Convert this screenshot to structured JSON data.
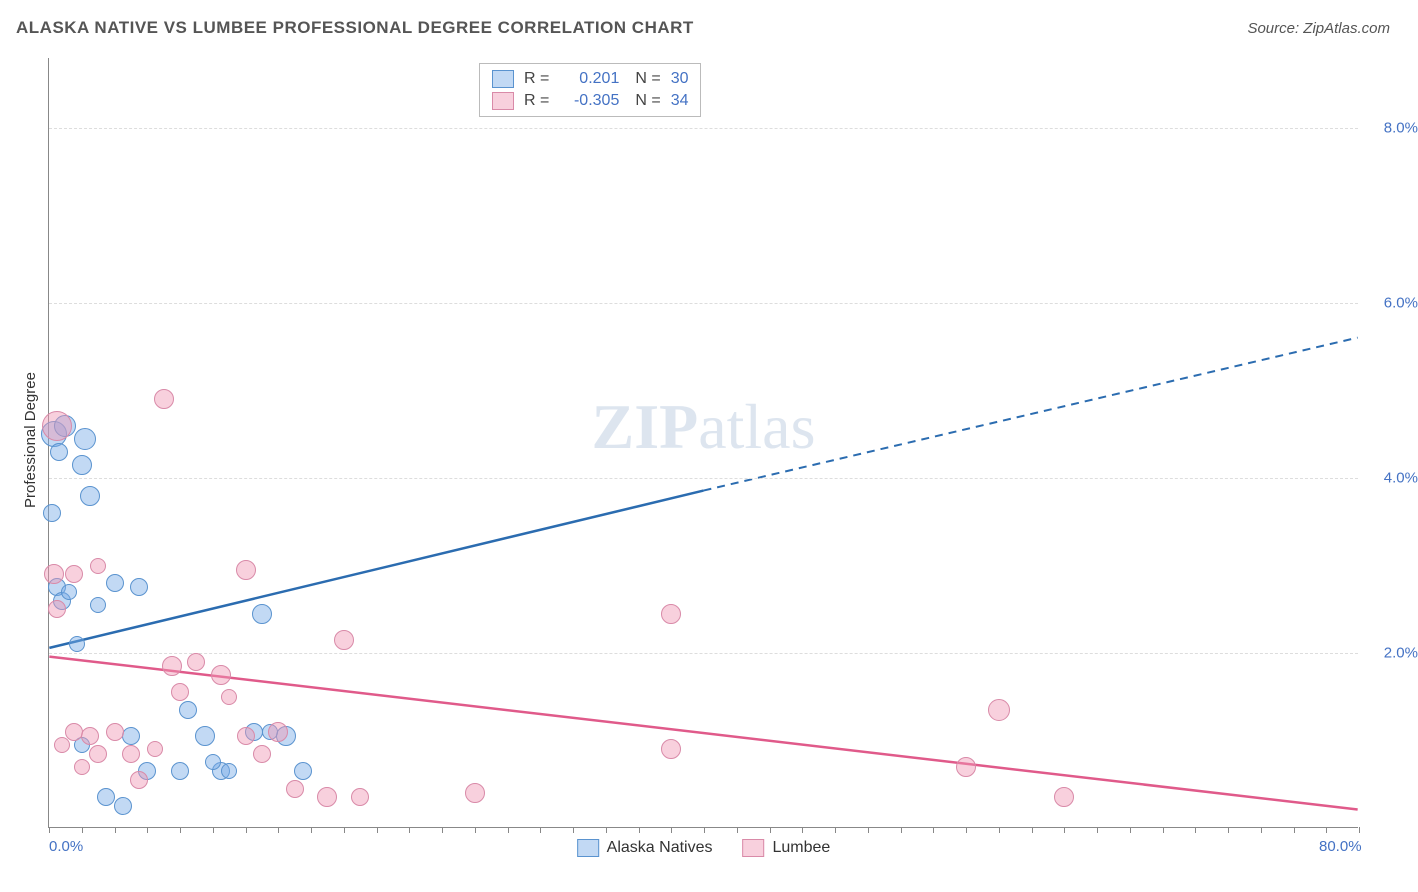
{
  "header": {
    "title": "ALASKA NATIVE VS LUMBEE PROFESSIONAL DEGREE CORRELATION CHART",
    "source": "Source: ZipAtlas.com"
  },
  "watermark": {
    "zip": "ZIP",
    "atlas": "atlas"
  },
  "chart": {
    "type": "scatter",
    "y_title": "Professional Degree",
    "xlim": [
      0,
      80
    ],
    "ylim": [
      0,
      8.8
    ],
    "x_ticks_minor_step": 2,
    "x_labels": [
      {
        "val": 0,
        "text": "0.0%"
      },
      {
        "val": 80,
        "text": "80.0%"
      }
    ],
    "y_labels": [
      {
        "val": 2.0,
        "text": "2.0%"
      },
      {
        "val": 4.0,
        "text": "4.0%"
      },
      {
        "val": 6.0,
        "text": "6.0%"
      },
      {
        "val": 8.0,
        "text": "8.0%"
      }
    ],
    "grid_color": "#dddddd",
    "background_color": "#ffffff",
    "series": [
      {
        "name": "Alaska Natives",
        "fill": "rgba(120,170,230,0.45)",
        "stroke": "#5a93cf",
        "trend_color": "#2b6cb0",
        "r_value": "0.201",
        "n_value": "30",
        "trend": {
          "x1": 0,
          "y1": 2.05,
          "x2_solid": 40,
          "y2_solid": 3.85,
          "x2_dash": 80,
          "y2_dash": 5.6
        },
        "points": [
          {
            "x": 0.3,
            "y": 4.5,
            "r": 13
          },
          {
            "x": 0.2,
            "y": 3.6,
            "r": 9
          },
          {
            "x": 0.5,
            "y": 2.75,
            "r": 9
          },
          {
            "x": 1.0,
            "y": 4.6,
            "r": 11
          },
          {
            "x": 2.2,
            "y": 4.45,
            "r": 11
          },
          {
            "x": 2.0,
            "y": 4.15,
            "r": 10
          },
          {
            "x": 2.5,
            "y": 3.8,
            "r": 10
          },
          {
            "x": 4.0,
            "y": 2.8,
            "r": 9
          },
          {
            "x": 5.5,
            "y": 2.75,
            "r": 9
          },
          {
            "x": 0.8,
            "y": 2.6,
            "r": 9
          },
          {
            "x": 3.0,
            "y": 2.55,
            "r": 8
          },
          {
            "x": 1.7,
            "y": 2.1,
            "r": 8
          },
          {
            "x": 13.0,
            "y": 2.45,
            "r": 10
          },
          {
            "x": 5.0,
            "y": 1.05,
            "r": 9
          },
          {
            "x": 6.0,
            "y": 0.65,
            "r": 9
          },
          {
            "x": 8.0,
            "y": 0.65,
            "r": 9
          },
          {
            "x": 8.5,
            "y": 1.35,
            "r": 9
          },
          {
            "x": 9.5,
            "y": 1.05,
            "r": 10
          },
          {
            "x": 10.5,
            "y": 0.65,
            "r": 9
          },
          {
            "x": 12.5,
            "y": 1.1,
            "r": 9
          },
          {
            "x": 14.5,
            "y": 1.05,
            "r": 10
          },
          {
            "x": 15.5,
            "y": 0.65,
            "r": 9
          },
          {
            "x": 3.5,
            "y": 0.35,
            "r": 9
          },
          {
            "x": 4.5,
            "y": 0.25,
            "r": 9
          },
          {
            "x": 1.2,
            "y": 2.7,
            "r": 8
          },
          {
            "x": 2.0,
            "y": 0.95,
            "r": 8
          },
          {
            "x": 0.6,
            "y": 4.3,
            "r": 9
          },
          {
            "x": 10.0,
            "y": 0.75,
            "r": 8
          },
          {
            "x": 11.0,
            "y": 0.65,
            "r": 8
          },
          {
            "x": 13.5,
            "y": 1.1,
            "r": 8
          }
        ]
      },
      {
        "name": "Lumbee",
        "fill": "rgba(240,150,180,0.45)",
        "stroke": "#d98aa8",
        "trend_color": "#e05a8a",
        "r_value": "-0.305",
        "n_value": "34",
        "trend": {
          "x1": 0,
          "y1": 1.95,
          "x2_solid": 80,
          "y2_solid": 0.2,
          "x2_dash": 80,
          "y2_dash": 0.2
        },
        "points": [
          {
            "x": 0.5,
            "y": 4.6,
            "r": 15
          },
          {
            "x": 0.3,
            "y": 2.9,
            "r": 10
          },
          {
            "x": 1.5,
            "y": 2.9,
            "r": 9
          },
          {
            "x": 7.0,
            "y": 4.9,
            "r": 10
          },
          {
            "x": 3.0,
            "y": 3.0,
            "r": 8
          },
          {
            "x": 0.5,
            "y": 2.5,
            "r": 9
          },
          {
            "x": 12.0,
            "y": 2.95,
            "r": 10
          },
          {
            "x": 18.0,
            "y": 2.15,
            "r": 10
          },
          {
            "x": 1.5,
            "y": 1.1,
            "r": 9
          },
          {
            "x": 2.5,
            "y": 1.05,
            "r": 9
          },
          {
            "x": 3.0,
            "y": 0.85,
            "r": 9
          },
          {
            "x": 4.0,
            "y": 1.1,
            "r": 9
          },
          {
            "x": 5.0,
            "y": 0.85,
            "r": 9
          },
          {
            "x": 5.5,
            "y": 0.55,
            "r": 9
          },
          {
            "x": 7.5,
            "y": 1.85,
            "r": 10
          },
          {
            "x": 8.0,
            "y": 1.55,
            "r": 9
          },
          {
            "x": 9.0,
            "y": 1.9,
            "r": 9
          },
          {
            "x": 10.5,
            "y": 1.75,
            "r": 10
          },
          {
            "x": 12.0,
            "y": 1.05,
            "r": 9
          },
          {
            "x": 13.0,
            "y": 0.85,
            "r": 9
          },
          {
            "x": 14.0,
            "y": 1.1,
            "r": 10
          },
          {
            "x": 15.0,
            "y": 0.45,
            "r": 9
          },
          {
            "x": 17.0,
            "y": 0.35,
            "r": 10
          },
          {
            "x": 19.0,
            "y": 0.35,
            "r": 9
          },
          {
            "x": 26.0,
            "y": 0.4,
            "r": 10
          },
          {
            "x": 38.0,
            "y": 2.45,
            "r": 10
          },
          {
            "x": 38.0,
            "y": 0.9,
            "r": 10
          },
          {
            "x": 56.0,
            "y": 0.7,
            "r": 10
          },
          {
            "x": 58.0,
            "y": 1.35,
            "r": 11
          },
          {
            "x": 62.0,
            "y": 0.35,
            "r": 10
          },
          {
            "x": 0.8,
            "y": 0.95,
            "r": 8
          },
          {
            "x": 2.0,
            "y": 0.7,
            "r": 8
          },
          {
            "x": 6.5,
            "y": 0.9,
            "r": 8
          },
          {
            "x": 11.0,
            "y": 1.5,
            "r": 8
          }
        ]
      }
    ],
    "legend_bottom": [
      {
        "name": "Alaska Natives",
        "fill": "rgba(120,170,230,0.45)",
        "stroke": "#5a93cf"
      },
      {
        "name": "Lumbee",
        "fill": "rgba(240,150,180,0.45)",
        "stroke": "#d98aa8"
      }
    ]
  }
}
